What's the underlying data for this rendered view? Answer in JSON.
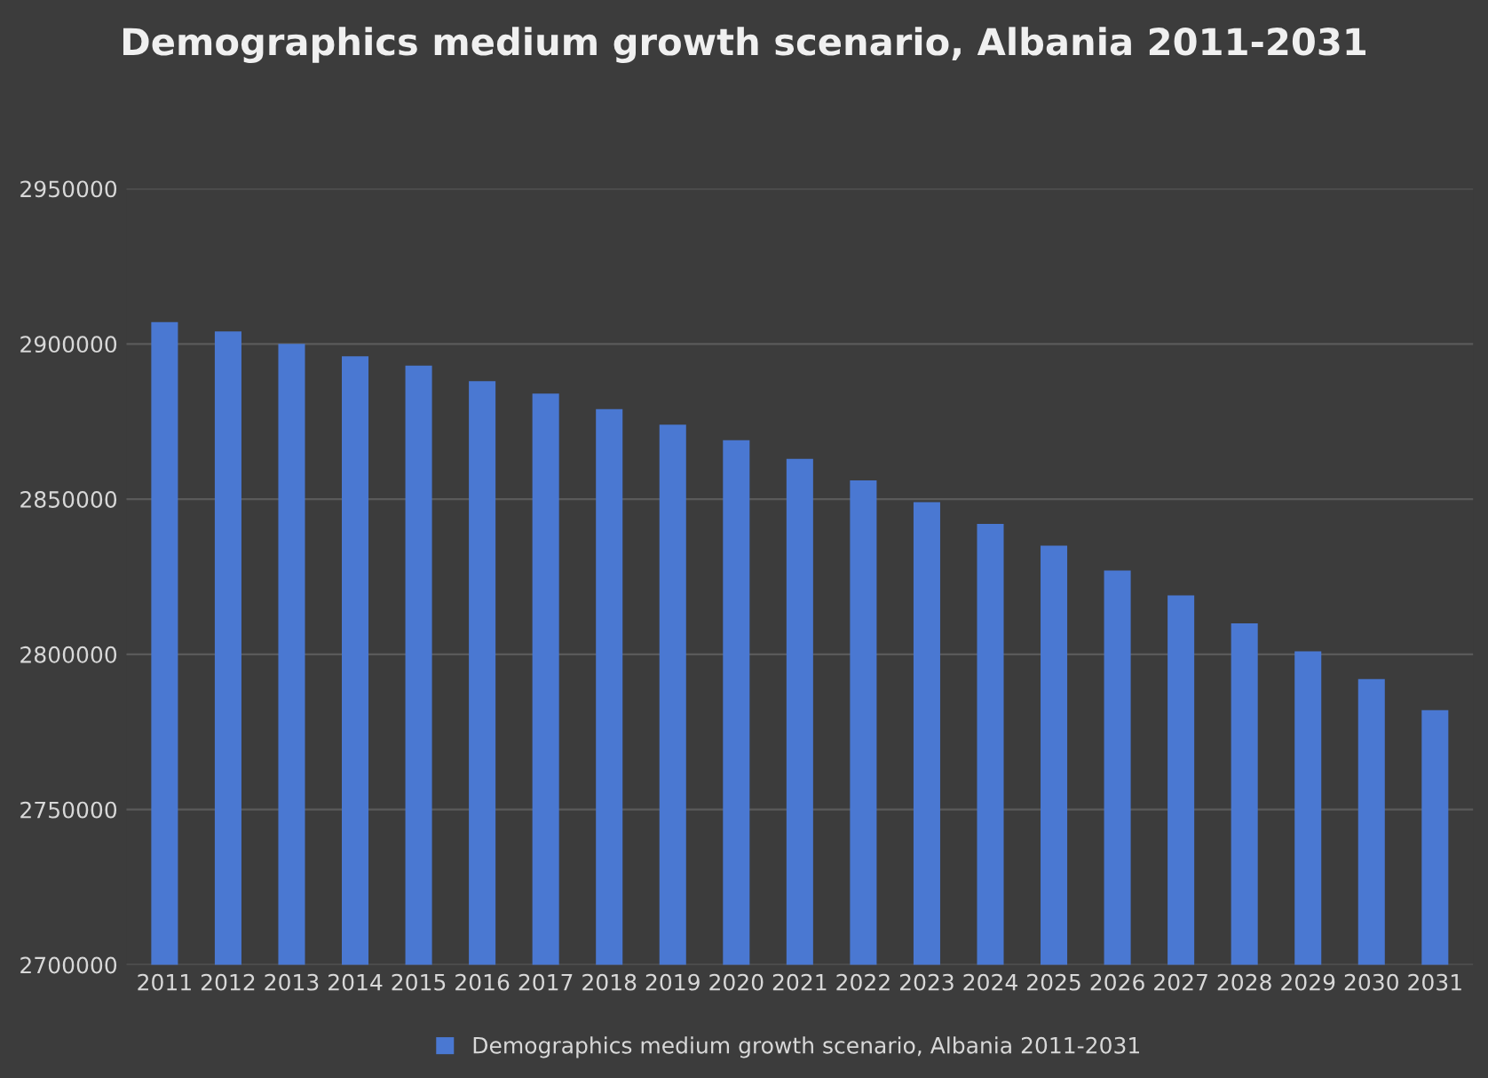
{
  "chart_data": {
    "type": "bar",
    "title": "Demographics medium growth scenario, Albania 2011-2031",
    "categories": [
      "2011",
      "2012",
      "2013",
      "2014",
      "2015",
      "2016",
      "2017",
      "2018",
      "2019",
      "2020",
      "2021",
      "2022",
      "2023",
      "2024",
      "2025",
      "2026",
      "2027",
      "2028",
      "2029",
      "2030",
      "2031"
    ],
    "series": [
      {
        "name": "Demographics medium growth scenario, Albania 2011-2031",
        "color": "#4a78d2",
        "values": [
          2907000,
          2904000,
          2900000,
          2896000,
          2893000,
          2888000,
          2884000,
          2879000,
          2874000,
          2869000,
          2863000,
          2856000,
          2849000,
          2842000,
          2835000,
          2827000,
          2819000,
          2810000,
          2801000,
          2792000,
          2782000
        ]
      }
    ],
    "ylim": [
      2700000,
      2950000
    ],
    "yticks": [
      2700000,
      2750000,
      2800000,
      2850000,
      2900000,
      2950000
    ],
    "grid": "y",
    "legend": "bottom"
  }
}
